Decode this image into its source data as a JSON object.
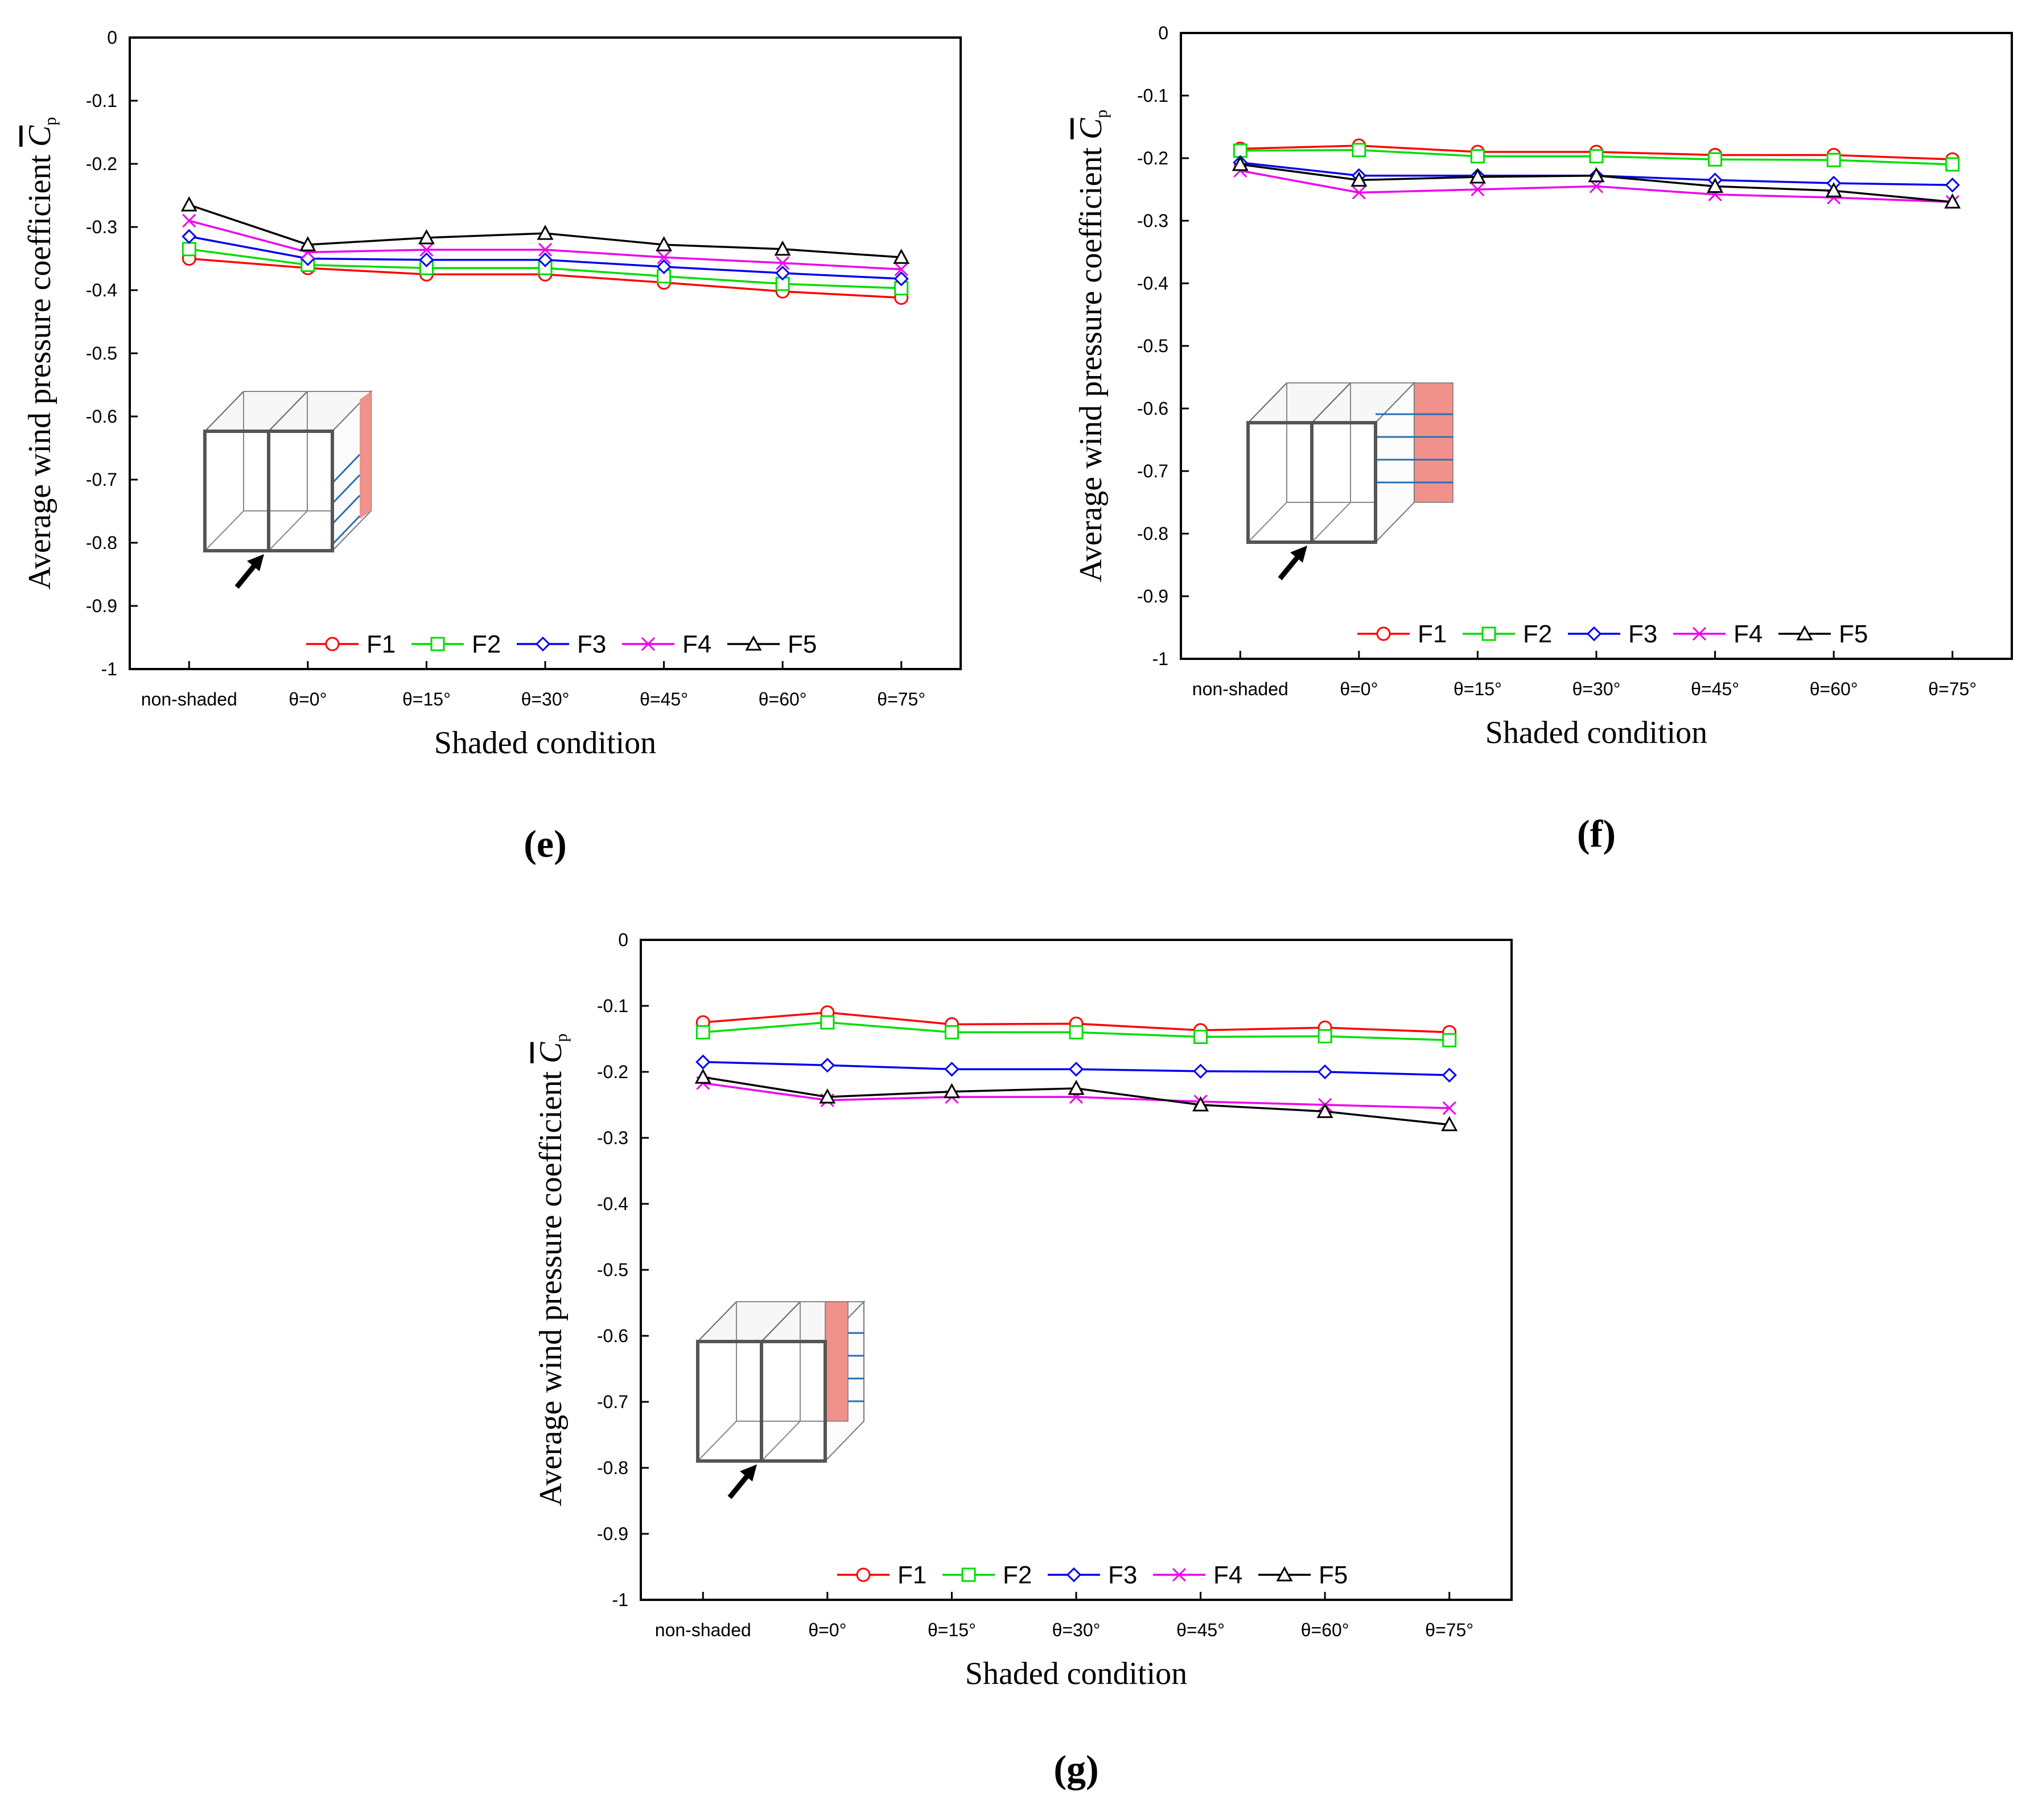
{
  "legend_names": [
    "F1",
    "F2",
    "F3",
    "F4",
    "F5"
  ],
  "series_colors": [
    "#ff0000",
    "#00dd00",
    "#0000ee",
    "#ee00ee",
    "#000000"
  ],
  "series_markers": [
    "circle",
    "square",
    "diamond",
    "x",
    "triangle"
  ],
  "inset_colors": {
    "shade": "#f0918c",
    "line": "#2a6fb5"
  },
  "chart_data": [
    {
      "id": "e",
      "panel_label": "(e)",
      "type": "line",
      "xlabel": "Shaded condition",
      "ylabel": "Average wind pressure coefficient",
      "ylabel_symbol": "C",
      "ylabel_subscript": "p",
      "categories": [
        "non-shaded",
        "θ=0°",
        "θ=15°",
        "θ=30°",
        "θ=45°",
        "θ=60°",
        "θ=75°"
      ],
      "ylim": [
        -1,
        0
      ],
      "yticks": [
        "0",
        "-0.1",
        "-0.2",
        "-0.3",
        "-0.4",
        "-0.5",
        "-0.6",
        "-0.7",
        "-0.8",
        "-0.9",
        "-1"
      ],
      "series": [
        {
          "name": "F1",
          "values": [
            -0.35,
            -0.365,
            -0.375,
            -0.375,
            -0.388,
            -0.402,
            -0.412
          ]
        },
        {
          "name": "F2",
          "values": [
            -0.335,
            -0.36,
            -0.365,
            -0.365,
            -0.378,
            -0.39,
            -0.397
          ]
        },
        {
          "name": "F3",
          "values": [
            -0.315,
            -0.35,
            -0.352,
            -0.352,
            -0.363,
            -0.373,
            -0.382
          ]
        },
        {
          "name": "F4",
          "values": [
            -0.29,
            -0.34,
            -0.336,
            -0.336,
            -0.348,
            -0.357,
            -0.367
          ]
        },
        {
          "name": "F5",
          "values": [
            -0.265,
            -0.328,
            -0.317,
            -0.31,
            -0.328,
            -0.335,
            -0.348
          ]
        }
      ]
    },
    {
      "id": "f",
      "panel_label": "(f)",
      "type": "line",
      "xlabel": "Shaded condition",
      "ylabel": "Average wind pressure coefficient",
      "ylabel_symbol": "C",
      "ylabel_subscript": "p",
      "categories": [
        "non-shaded",
        "θ=0°",
        "θ=15°",
        "θ=30°",
        "θ=45°",
        "θ=60°",
        "θ=75°"
      ],
      "ylim": [
        -1,
        0
      ],
      "yticks": [
        "0",
        "-0.1",
        "-0.2",
        "-0.3",
        "-0.4",
        "-0.5",
        "-0.6",
        "-0.7",
        "-0.8",
        "-0.9",
        "-1"
      ],
      "series": [
        {
          "name": "F1",
          "values": [
            -0.185,
            -0.18,
            -0.19,
            -0.19,
            -0.195,
            -0.195,
            -0.202
          ]
        },
        {
          "name": "F2",
          "values": [
            -0.188,
            -0.187,
            -0.197,
            -0.197,
            -0.202,
            -0.203,
            -0.21
          ]
        },
        {
          "name": "F3",
          "values": [
            -0.207,
            -0.228,
            -0.228,
            -0.228,
            -0.235,
            -0.24,
            -0.243
          ]
        },
        {
          "name": "F4",
          "values": [
            -0.22,
            -0.255,
            -0.25,
            -0.245,
            -0.258,
            -0.263,
            -0.27
          ]
        },
        {
          "name": "F5",
          "values": [
            -0.21,
            -0.235,
            -0.23,
            -0.228,
            -0.245,
            -0.252,
            -0.27
          ]
        }
      ]
    },
    {
      "id": "g",
      "panel_label": "(g)",
      "type": "line",
      "xlabel": "Shaded condition",
      "ylabel": "Average wind pressure coefficient",
      "ylabel_symbol": "C",
      "ylabel_subscript": "p",
      "categories": [
        "non-shaded",
        "θ=0°",
        "θ=15°",
        "θ=30°",
        "θ=45°",
        "θ=60°",
        "θ=75°"
      ],
      "ylim": [
        -1,
        0
      ],
      "yticks": [
        "0",
        "-0.1",
        "-0.2",
        "-0.3",
        "-0.4",
        "-0.5",
        "-0.6",
        "-0.7",
        "-0.8",
        "-0.9",
        "-1"
      ],
      "series": [
        {
          "name": "F1",
          "values": [
            -0.125,
            -0.11,
            -0.128,
            -0.127,
            -0.137,
            -0.133,
            -0.14
          ]
        },
        {
          "name": "F2",
          "values": [
            -0.14,
            -0.125,
            -0.14,
            -0.14,
            -0.147,
            -0.146,
            -0.152
          ]
        },
        {
          "name": "F3",
          "values": [
            -0.185,
            -0.19,
            -0.196,
            -0.196,
            -0.199,
            -0.2,
            -0.205
          ]
        },
        {
          "name": "F4",
          "values": [
            -0.217,
            -0.243,
            -0.238,
            -0.238,
            -0.245,
            -0.25,
            -0.255
          ]
        },
        {
          "name": "F5",
          "values": [
            -0.208,
            -0.238,
            -0.23,
            -0.225,
            -0.25,
            -0.26,
            -0.28
          ]
        }
      ]
    }
  ]
}
